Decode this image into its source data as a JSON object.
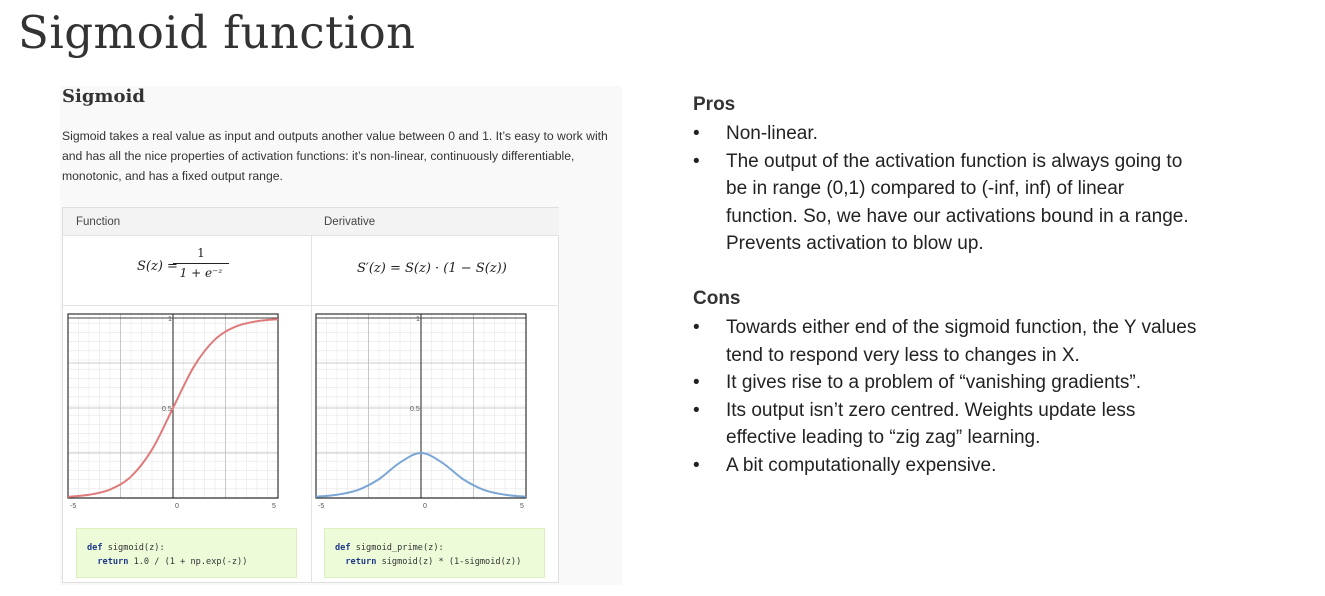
{
  "slide": {
    "title": "Sigmoid function"
  },
  "card": {
    "heading": "Sigmoid",
    "description": "Sigmoid takes a real value as input and outputs another value between 0 and 1. It’s easy to work with and has all the nice properties of activation functions: it’s non-linear, continuously differentiable, monotonic, and has a fixed output range.",
    "table": {
      "function_header": "Function",
      "derivative_header": "Derivative",
      "function_formula": {
        "lhs": "S(z) =",
        "num": "1",
        "den": "1 + e⁻ᶻ"
      },
      "derivative_formula": "S′(z) = S(z) · (1 − S(z))",
      "code_function": {
        "line1_kw": "def",
        "line1_rest": " sigmoid(z):",
        "line2_kw": "return",
        "line2_rest": " 1.0 / (1 + np.exp(-z))"
      },
      "code_derivative": {
        "line1_kw": "def",
        "line1_rest": " sigmoid_prime(z):",
        "line2_kw": "return",
        "line2_rest": " sigmoid(z) * (1-sigmoid(z))"
      }
    }
  },
  "chart_data": [
    {
      "type": "line",
      "xlim": [
        -5,
        5
      ],
      "ylim": [
        0,
        1
      ],
      "x_tick_labels": [
        "-5",
        "0",
        "5"
      ],
      "y_tick_labels": [
        "1",
        "0.5"
      ],
      "grid": true,
      "color": "#e07b7b",
      "x": [
        -5,
        -4,
        -3,
        -2,
        -1,
        0,
        1,
        2,
        3,
        4,
        5
      ],
      "y": [
        0.007,
        0.018,
        0.047,
        0.119,
        0.269,
        0.5,
        0.731,
        0.881,
        0.953,
        0.982,
        0.993
      ]
    },
    {
      "type": "line",
      "xlim": [
        -5,
        5
      ],
      "ylim": [
        0,
        1
      ],
      "x_tick_labels": [
        "-5",
        "0",
        "5"
      ],
      "y_tick_labels": [
        "1",
        "0.5"
      ],
      "grid": true,
      "color": "#7aa6d6",
      "x": [
        -5,
        -4,
        -3,
        -2,
        -1,
        0,
        1,
        2,
        3,
        4,
        5
      ],
      "y": [
        0.007,
        0.018,
        0.045,
        0.105,
        0.197,
        0.25,
        0.197,
        0.105,
        0.045,
        0.018,
        0.007
      ]
    }
  ],
  "pros": {
    "title": "Pros",
    "items": [
      [
        "Non-linear."
      ],
      [
        "The output of the activation function is always going to",
        "be in range (0,1) compared to (-inf, inf) of linear",
        "function. So, we have our activations bound in a range.",
        "Prevents activation to blow up."
      ]
    ]
  },
  "cons": {
    "title": "Cons",
    "items": [
      [
        "Towards either end of the sigmoid function, the Y values",
        "tend to respond very less to changes in X."
      ],
      [
        "It gives rise to a problem of “vanishing gradients”."
      ],
      [
        "Its output isn’t zero centred. Weights update less",
        "effective leading to “zig zag” learning."
      ],
      [
        "A bit computationally expensive."
      ]
    ]
  }
}
